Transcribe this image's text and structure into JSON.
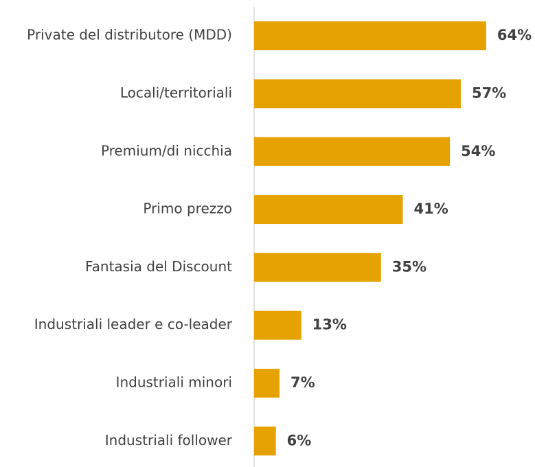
{
  "chart_data": {
    "type": "hbar",
    "categories": [
      "Private del distributore (MDD)",
      "Locali/territoriali",
      "Premium/di nicchia",
      "Primo prezzo",
      "Fantasia del Discount",
      "Industriali leader e co-leader",
      "Industriali minori",
      "Industriali follower"
    ],
    "values": [
      64,
      57,
      54,
      41,
      35,
      13,
      7,
      6
    ],
    "value_labels": [
      "64%",
      "57%",
      "54%",
      "41%",
      "35%",
      "13%",
      "7%",
      "6%"
    ],
    "color": "#e5a200"
  }
}
